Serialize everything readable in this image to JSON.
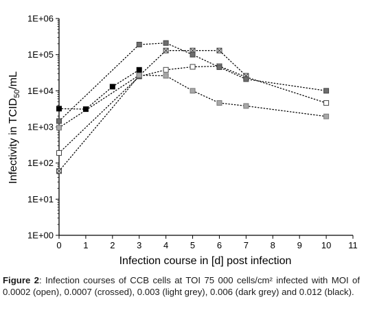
{
  "chart_data": {
    "type": "scatter",
    "xlabel": "Infection course in [d] post infection",
    "ylabel_main": "Infectivity in TCID",
    "ylabel_sub": "50",
    "ylabel_tail": "/mL",
    "xlim": [
      0,
      11
    ],
    "ylim": [
      1,
      1000000
    ],
    "yscale": "log",
    "grid": false,
    "legend": "none",
    "x_ticks": [
      "0",
      "1",
      "2",
      "3",
      "4",
      "5",
      "6",
      "7",
      "8",
      "9",
      "10",
      "11"
    ],
    "y_ticks": [
      "1E+00",
      "1E+01",
      "1E+02",
      "1E+03",
      "1E+04",
      "1E+05",
      "1E+06"
    ],
    "series": [
      {
        "marker": "open",
        "fill": "#ffffff",
        "stroke": "#444444",
        "x": [
          0,
          3,
          4,
          5,
          6,
          7,
          10
        ],
        "y": [
          190,
          25000,
          38000,
          46000,
          48000,
          24000,
          4600
        ]
      },
      {
        "marker": "crossed",
        "fill": "#d6d6d6",
        "stroke": "#444444",
        "x": [
          0,
          3,
          4,
          5,
          6,
          7
        ],
        "y": [
          60,
          26000,
          130000,
          130000,
          130000,
          26000
        ]
      },
      {
        "marker": "light-grey",
        "fill": "#a8a8a8",
        "stroke": "#7a7a7a",
        "x": [
          0,
          3,
          4,
          5,
          6,
          7,
          10
        ],
        "y": [
          950,
          27000,
          26000,
          10000,
          4600,
          3800,
          1950
        ]
      },
      {
        "marker": "dark-grey",
        "fill": "#6e6e6e",
        "stroke": "#444444",
        "x": [
          0,
          3,
          4,
          5,
          6,
          7,
          10
        ],
        "y": [
          1450,
          190000,
          210000,
          100000,
          45000,
          21000,
          10000
        ]
      },
      {
        "marker": "black",
        "fill": "#000000",
        "stroke": "#000000",
        "x": [
          0,
          1,
          2,
          3
        ],
        "y": [
          3200,
          3100,
          13000,
          38000
        ]
      }
    ]
  },
  "caption": {
    "label": "Figure 2",
    "text": ": Infection courses of CCB cells at TOI 75 000 cells/cm² infected with MOI of 0.0002 (open), 0.0007 (crossed), 0.003 (light grey), 0.006 (dark grey) and 0.012 (black)."
  }
}
